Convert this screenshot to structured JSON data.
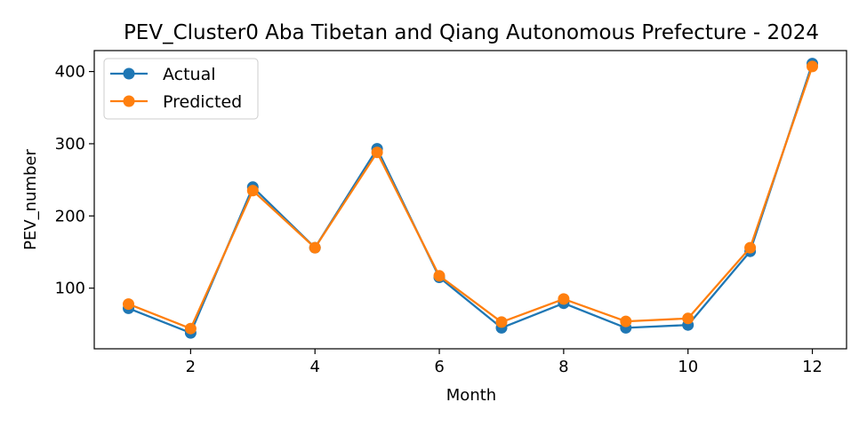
{
  "chart_data": {
    "type": "line",
    "title": "PEV_Cluster0 Aba Tibetan and Qiang Autonomous Prefecture - 2024",
    "xlabel": "Month",
    "ylabel": "PEV_number",
    "x": [
      1,
      2,
      3,
      4,
      5,
      6,
      7,
      8,
      9,
      10,
      11,
      12
    ],
    "xlim": [
      0.45,
      12.55
    ],
    "ylim": [
      16,
      429
    ],
    "xticks": [
      2,
      4,
      6,
      8,
      10,
      12
    ],
    "yticks": [
      100,
      200,
      300,
      400
    ],
    "grid": false,
    "legend_position": "top-left",
    "series": [
      {
        "name": "Actual",
        "color": "#1f77b4",
        "marker": "circle",
        "values": [
          72,
          38,
          240,
          156,
          293,
          115,
          45,
          79,
          45,
          49,
          151,
          411
        ]
      },
      {
        "name": "Predicted",
        "color": "#ff7f0e",
        "marker": "circle",
        "values": [
          78,
          44,
          235,
          156,
          288,
          117,
          53,
          85,
          54,
          58,
          156,
          407
        ]
      }
    ]
  }
}
